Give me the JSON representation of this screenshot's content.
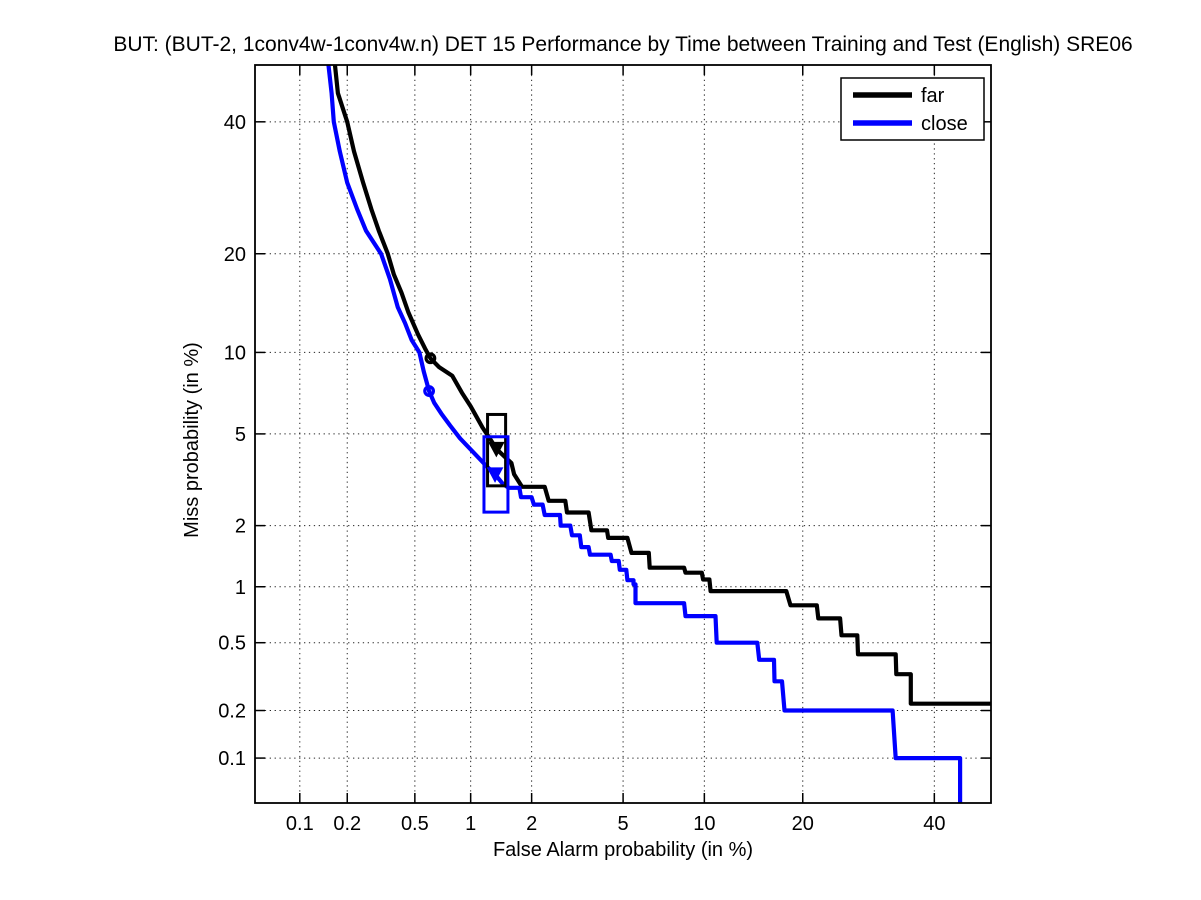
{
  "chart_data": {
    "type": "line",
    "subtype": "DET-curve",
    "title": "BUT: (BUT-2, 1conv4w-1conv4w.n) DET 15 Performance by Time between Training and Test (English) SRE06",
    "xlabel": "False Alarm probability (in %)",
    "ylabel": "Miss probability (in %)",
    "x_scale": "probit",
    "y_scale": "probit",
    "xlim": [
      0.05,
      50
    ],
    "ylim": [
      0.05,
      50
    ],
    "x_ticks": [
      0.1,
      0.2,
      0.5,
      1,
      2,
      5,
      10,
      20,
      40
    ],
    "y_ticks": [
      0.1,
      0.2,
      0.5,
      1,
      2,
      5,
      10,
      20,
      40
    ],
    "grid": "dotted",
    "frame_color": "#000000",
    "background": "#ffffff",
    "legend_position": "top-right",
    "series": [
      {
        "name": "far",
        "color": "#000000",
        "points": [
          [
            0.165,
            52
          ],
          [
            0.175,
            45
          ],
          [
            0.2,
            40
          ],
          [
            0.22,
            35
          ],
          [
            0.25,
            30
          ],
          [
            0.28,
            26
          ],
          [
            0.31,
            23
          ],
          [
            0.35,
            20
          ],
          [
            0.38,
            17.5
          ],
          [
            0.42,
            15.5
          ],
          [
            0.46,
            13.5
          ],
          [
            0.52,
            11.5
          ],
          [
            0.57,
            10.3
          ],
          [
            0.61,
            9.55
          ],
          [
            0.68,
            8.9
          ],
          [
            0.8,
            8.3
          ],
          [
            0.9,
            7.2
          ],
          [
            1.0,
            6.4
          ],
          [
            1.05,
            6.0
          ],
          [
            1.15,
            5.3
          ],
          [
            1.25,
            4.8
          ],
          [
            1.35,
            4.35
          ],
          [
            1.5,
            4.0
          ],
          [
            1.6,
            3.8
          ],
          [
            1.65,
            3.4
          ],
          [
            1.8,
            3.0
          ],
          [
            2.3,
            3.0
          ],
          [
            2.4,
            2.6
          ],
          [
            2.85,
            2.6
          ],
          [
            2.9,
            2.3
          ],
          [
            3.6,
            2.3
          ],
          [
            3.7,
            1.9
          ],
          [
            4.3,
            1.9
          ],
          [
            4.35,
            1.75
          ],
          [
            5.2,
            1.75
          ],
          [
            5.4,
            1.48
          ],
          [
            6.3,
            1.48
          ],
          [
            6.35,
            1.25
          ],
          [
            8.5,
            1.25
          ],
          [
            8.6,
            1.18
          ],
          [
            9.8,
            1.18
          ],
          [
            9.9,
            1.09
          ],
          [
            10.4,
            1.09
          ],
          [
            10.5,
            0.95
          ],
          [
            18,
            0.95
          ],
          [
            18.5,
            0.8
          ],
          [
            21.8,
            0.8
          ],
          [
            22,
            0.68
          ],
          [
            25,
            0.68
          ],
          [
            25.2,
            0.55
          ],
          [
            27.5,
            0.55
          ],
          [
            27.6,
            0.43
          ],
          [
            33.5,
            0.43
          ],
          [
            33.6,
            0.33
          ],
          [
            36,
            0.33
          ],
          [
            36,
            0.22
          ],
          [
            50,
            0.22
          ]
        ],
        "markers": {
          "operating_point": {
            "fa": 0.61,
            "miss": 9.55,
            "shape": "open-circle"
          },
          "dcf_point": {
            "fa": 1.35,
            "miss": 4.35,
            "shape": "filled-triangle-down"
          },
          "dcf_box": {
            "fa_range": [
              1.22,
              1.5
            ],
            "miss_range": [
              3.03,
              5.96
            ]
          }
        }
      },
      {
        "name": "close",
        "color": "#0000ff",
        "points": [
          [
            0.15,
            52
          ],
          [
            0.16,
            45
          ],
          [
            0.165,
            40
          ],
          [
            0.18,
            35
          ],
          [
            0.2,
            30
          ],
          [
            0.23,
            26
          ],
          [
            0.26,
            23
          ],
          [
            0.32,
            20
          ],
          [
            0.36,
            17
          ],
          [
            0.4,
            14
          ],
          [
            0.44,
            12.5
          ],
          [
            0.48,
            11
          ],
          [
            0.53,
            10
          ],
          [
            0.56,
            8.6
          ],
          [
            0.6,
            7.3
          ],
          [
            0.64,
            6.6
          ],
          [
            0.7,
            6.0
          ],
          [
            0.78,
            5.4
          ],
          [
            0.88,
            4.8
          ],
          [
            1.05,
            4.15
          ],
          [
            1.2,
            3.7
          ],
          [
            1.33,
            3.4
          ],
          [
            1.45,
            3.1
          ],
          [
            1.55,
            2.97
          ],
          [
            1.75,
            2.97
          ],
          [
            1.78,
            2.7
          ],
          [
            2.0,
            2.7
          ],
          [
            2.05,
            2.5
          ],
          [
            2.25,
            2.5
          ],
          [
            2.3,
            2.24
          ],
          [
            2.7,
            2.24
          ],
          [
            2.72,
            2.0
          ],
          [
            3.0,
            2.0
          ],
          [
            3.05,
            1.8
          ],
          [
            3.3,
            1.8
          ],
          [
            3.35,
            1.58
          ],
          [
            3.6,
            1.58
          ],
          [
            3.65,
            1.45
          ],
          [
            4.45,
            1.45
          ],
          [
            4.5,
            1.35
          ],
          [
            4.8,
            1.35
          ],
          [
            4.85,
            1.22
          ],
          [
            5.15,
            1.22
          ],
          [
            5.2,
            1.08
          ],
          [
            5.5,
            1.08
          ],
          [
            5.5,
            1.03
          ],
          [
            5.6,
            1.03
          ],
          [
            5.6,
            0.82
          ],
          [
            8.5,
            0.82
          ],
          [
            8.6,
            0.7
          ],
          [
            10.9,
            0.7
          ],
          [
            11,
            0.5
          ],
          [
            14.8,
            0.5
          ],
          [
            15,
            0.4
          ],
          [
            16.6,
            0.4
          ],
          [
            16.65,
            0.3
          ],
          [
            17.5,
            0.3
          ],
          [
            17.8,
            0.2
          ],
          [
            33,
            0.2
          ],
          [
            33.5,
            0.1
          ],
          [
            44.5,
            0.1
          ],
          [
            44.5,
            0.03
          ]
        ],
        "markers": {
          "operating_point": {
            "fa": 0.6,
            "miss": 7.3,
            "shape": "open-circle"
          },
          "dcf_point": {
            "fa": 1.33,
            "miss": 3.4,
            "shape": "filled-triangle-down"
          },
          "dcf_box": {
            "fa_range": [
              1.17,
              1.54
            ],
            "miss_range": [
              2.31,
              4.87
            ]
          }
        }
      }
    ]
  }
}
